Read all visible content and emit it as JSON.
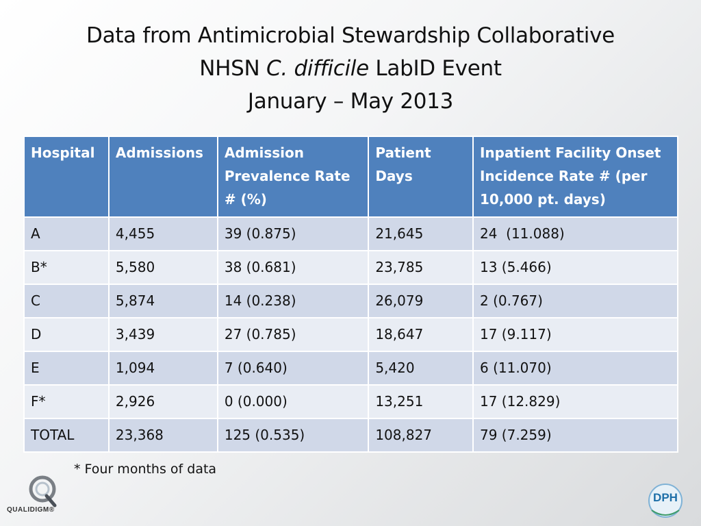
{
  "title": {
    "line1": "Data from Antimicrobial Stewardship Collaborative",
    "line2_prefix": "NHSN ",
    "line2_italic": "C. difficile",
    "line2_suffix": " LabID Event",
    "line3": "January – May 2013"
  },
  "table": {
    "headers": [
      "Hospital",
      "Admissions",
      "Admission Prevalence Rate # (%)",
      "Patient Days",
      "Inpatient Facility Onset Incidence Rate # (per 10,000 pt. days)"
    ],
    "rows": [
      [
        "A",
        "4,455",
        "39 (0.875)",
        "21,645",
        "24  (11.088)"
      ],
      [
        "B*",
        "5,580",
        "38 (0.681)",
        "23,785",
        "13 (5.466)"
      ],
      [
        "C",
        "5,874",
        "14 (0.238)",
        "26,079",
        "2 (0.767)"
      ],
      [
        "D",
        "3,439",
        "27 (0.785)",
        "18,647",
        "17 (9.117)"
      ],
      [
        "E",
        "1,094",
        "7 (0.640)",
        "5,420",
        "6 (11.070)"
      ],
      [
        "F*",
        "2,926",
        "0 (0.000)",
        "13,251",
        "17 (12.829)"
      ],
      [
        "TOTAL",
        "23,368",
        "125 (0.535)",
        "108,827",
        "79 (7.259)"
      ]
    ]
  },
  "footnote": "* Four months of data",
  "logos": {
    "left_text": "QUALIDIGM®",
    "right_text": "DPH"
  },
  "colors": {
    "header_bg": "#4f81bd",
    "row_odd": "#d0d8e8",
    "row_even": "#e9edf4"
  }
}
